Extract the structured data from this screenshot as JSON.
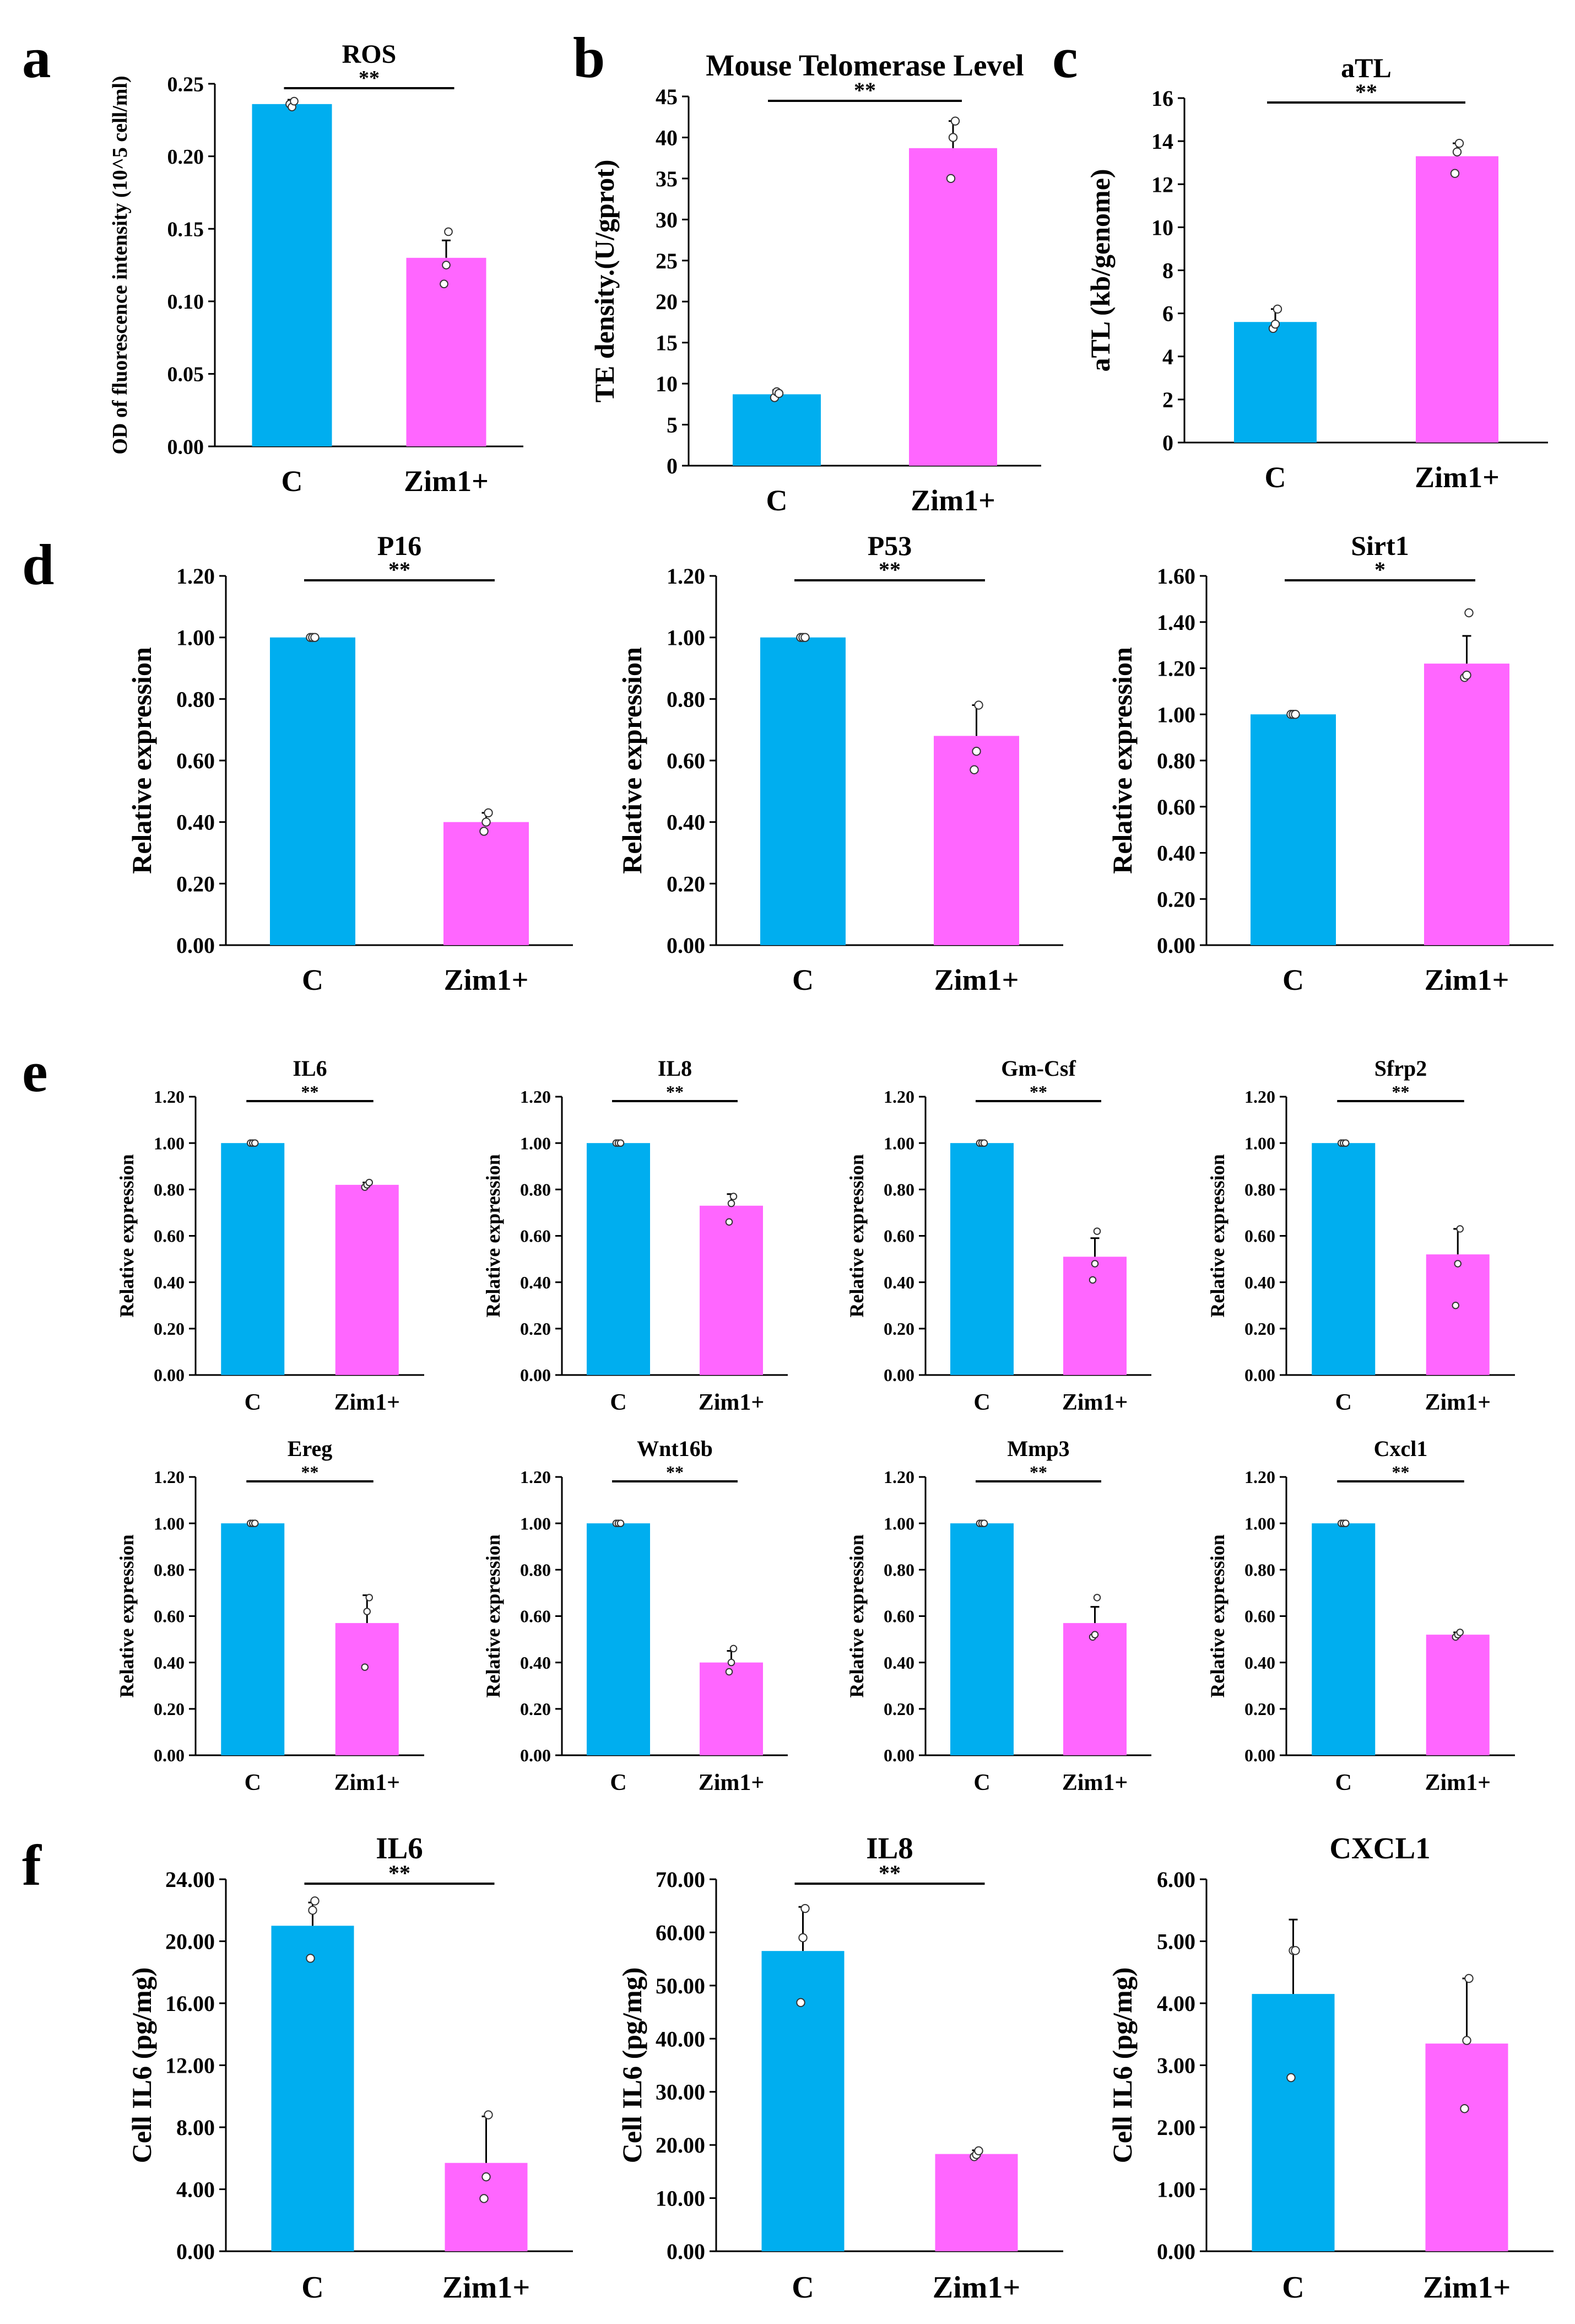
{
  "colors": {
    "control": "#00AEEF",
    "treated": "#FF66FF"
  },
  "panel_letters": [
    "a",
    "b",
    "c",
    "d",
    "e",
    "f"
  ],
  "chart_data": [
    {
      "id": "a-ros",
      "panel": "a",
      "type": "bar",
      "title": "ROS",
      "ylabel": "OD of fluorescence intensity (10^5 cell/ml)",
      "xlabel": "",
      "categories": [
        "C",
        "Zim1+"
      ],
      "values": [
        0.236,
        0.13
      ],
      "errors": [
        0.003,
        0.012
      ],
      "points": [
        [
          0.236,
          0.234,
          0.238
        ],
        [
          0.112,
          0.125,
          0.148
        ]
      ],
      "ylim": [
        0,
        0.25
      ],
      "yticks": [
        0,
        0.05,
        0.1,
        0.15,
        0.2,
        0.25
      ],
      "ytick_labels": [
        "0.00",
        "0.05",
        "0.10",
        "0.15",
        "0.20",
        "0.25"
      ],
      "significance": "**",
      "grid": false
    },
    {
      "id": "b-telomerase",
      "panel": "b",
      "type": "bar",
      "title": "Mouse Telomerase Level",
      "ylabel": "TE density.(U/gprot)",
      "xlabel": "",
      "categories": [
        "C",
        "Zim1+"
      ],
      "values": [
        8.7,
        38.7
      ],
      "errors": [
        0.5,
        3.3
      ],
      "points": [
        [
          8.3,
          9.0,
          8.8
        ],
        [
          35.0,
          40.0,
          42.0
        ]
      ],
      "ylim": [
        0,
        45
      ],
      "yticks": [
        0,
        5,
        10,
        15,
        20,
        25,
        30,
        35,
        40,
        45
      ],
      "ytick_labels": [
        "0",
        "5",
        "10",
        "15",
        "20",
        "25",
        "30",
        "35",
        "40",
        "45"
      ],
      "significance": "**",
      "grid": false
    },
    {
      "id": "c-atl",
      "panel": "c",
      "type": "bar",
      "title": "aTL",
      "ylabel": "aTL (kb/genome)",
      "xlabel": "",
      "categories": [
        "C",
        "Zim1+"
      ],
      "values": [
        5.6,
        13.3
      ],
      "errors": [
        0.6,
        0.6
      ],
      "points": [
        [
          5.3,
          5.5,
          6.2
        ],
        [
          12.5,
          13.5,
          13.9
        ]
      ],
      "ylim": [
        0,
        16
      ],
      "yticks": [
        0,
        2,
        4,
        6,
        8,
        10,
        12,
        14,
        16
      ],
      "ytick_labels": [
        "0",
        "2",
        "4",
        "6",
        "8",
        "10",
        "12",
        "14",
        "16"
      ],
      "significance": "**",
      "grid": false
    },
    {
      "id": "d-p16",
      "panel": "d",
      "type": "bar",
      "title": "P16",
      "ylabel": "Relative expression",
      "xlabel": "",
      "categories": [
        "C",
        "Zim1+"
      ],
      "values": [
        1.0,
        0.4
      ],
      "errors": [
        0.0,
        0.03
      ],
      "points": [
        [
          1.0,
          1.0,
          1.0
        ],
        [
          0.37,
          0.4,
          0.43
        ]
      ],
      "ylim": [
        0,
        1.2
      ],
      "yticks": [
        0,
        0.2,
        0.4,
        0.6,
        0.8,
        1.0,
        1.2
      ],
      "ytick_labels": [
        "0.00",
        "0.20",
        "0.40",
        "0.60",
        "0.80",
        "1.00",
        "1.20"
      ],
      "significance": "**",
      "grid": false
    },
    {
      "id": "d-p53",
      "panel": "d",
      "type": "bar",
      "title": "P53",
      "ylabel": "Relative expression",
      "xlabel": "",
      "categories": [
        "C",
        "Zim1+"
      ],
      "values": [
        1.0,
        0.68
      ],
      "errors": [
        0.0,
        0.1
      ],
      "points": [
        [
          1.0,
          1.0,
          1.0
        ],
        [
          0.57,
          0.63,
          0.78
        ]
      ],
      "ylim": [
        0,
        1.2
      ],
      "yticks": [
        0,
        0.2,
        0.4,
        0.6,
        0.8,
        1.0,
        1.2
      ],
      "ytick_labels": [
        "0.00",
        "0.20",
        "0.40",
        "0.60",
        "0.80",
        "1.00",
        "1.20"
      ],
      "significance": "**",
      "grid": false
    },
    {
      "id": "d-sirt1",
      "panel": "d",
      "type": "bar",
      "title": "Sirt1",
      "ylabel": "Relative expression",
      "xlabel": "",
      "categories": [
        "C",
        "Zim1+"
      ],
      "values": [
        1.0,
        1.22
      ],
      "errors": [
        0.0,
        0.12
      ],
      "points": [
        [
          1.0,
          1.0,
          1.0
        ],
        [
          1.16,
          1.17,
          1.44
        ]
      ],
      "ylim": [
        0,
        1.6
      ],
      "yticks": [
        0,
        0.2,
        0.4,
        0.6,
        0.8,
        1.0,
        1.2,
        1.4,
        1.6
      ],
      "ytick_labels": [
        "0.00",
        "0.20",
        "0.40",
        "0.60",
        "0.80",
        "1.00",
        "1.20",
        "1.40",
        "1.60"
      ],
      "significance": "*",
      "grid": false
    },
    {
      "id": "e-il6",
      "panel": "e",
      "type": "bar",
      "title": "IL6",
      "ylabel": "Relative expression",
      "xlabel": "",
      "categories": [
        "C",
        "Zim1+"
      ],
      "values": [
        1.0,
        0.82
      ],
      "errors": [
        0.0,
        0.01
      ],
      "points": [
        [
          1.0,
          1.0,
          1.0
        ],
        [
          0.81,
          0.82,
          0.83
        ]
      ],
      "ylim": [
        0,
        1.2
      ],
      "yticks": [
        0,
        0.2,
        0.4,
        0.6,
        0.8,
        1.0,
        1.2
      ],
      "ytick_labels": [
        "0.00",
        "0.20",
        "0.40",
        "0.60",
        "0.80",
        "1.00",
        "1.20"
      ],
      "significance": "**",
      "grid": false
    },
    {
      "id": "e-il8",
      "panel": "e",
      "type": "bar",
      "title": "IL8",
      "ylabel": "Relative expression",
      "xlabel": "",
      "categories": [
        "C",
        "Zim1+"
      ],
      "values": [
        1.0,
        0.73
      ],
      "errors": [
        0.0,
        0.05
      ],
      "points": [
        [
          1.0,
          1.0,
          1.0
        ],
        [
          0.66,
          0.74,
          0.77
        ]
      ],
      "ylim": [
        0,
        1.2
      ],
      "yticks": [
        0,
        0.2,
        0.4,
        0.6,
        0.8,
        1.0,
        1.2
      ],
      "ytick_labels": [
        "0.00",
        "0.20",
        "0.40",
        "0.60",
        "0.80",
        "1.00",
        "1.20"
      ],
      "significance": "**",
      "grid": false
    },
    {
      "id": "e-gmcsf",
      "panel": "e",
      "type": "bar",
      "title": "Gm-Csf",
      "ylabel": "Relative expression",
      "xlabel": "",
      "categories": [
        "C",
        "Zim1+"
      ],
      "values": [
        1.0,
        0.51
      ],
      "errors": [
        0.0,
        0.08
      ],
      "points": [
        [
          1.0,
          1.0,
          1.0
        ],
        [
          0.41,
          0.48,
          0.62
        ]
      ],
      "ylim": [
        0,
        1.2
      ],
      "yticks": [
        0,
        0.2,
        0.4,
        0.6,
        0.8,
        1.0,
        1.2
      ],
      "ytick_labels": [
        "0.00",
        "0.20",
        "0.40",
        "0.60",
        "0.80",
        "1.00",
        "1.20"
      ],
      "significance": "**",
      "grid": false
    },
    {
      "id": "e-sfrp2",
      "panel": "e",
      "type": "bar",
      "title": "Sfrp2",
      "ylabel": "Relative expression",
      "xlabel": "",
      "categories": [
        "C",
        "Zim1+"
      ],
      "values": [
        1.0,
        0.52
      ],
      "errors": [
        0.0,
        0.11
      ],
      "points": [
        [
          1.0,
          1.0,
          1.0
        ],
        [
          0.3,
          0.48,
          0.63
        ]
      ],
      "ylim": [
        0,
        1.2
      ],
      "yticks": [
        0,
        0.2,
        0.4,
        0.6,
        0.8,
        1.0,
        1.2
      ],
      "ytick_labels": [
        "0.00",
        "0.20",
        "0.40",
        "0.60",
        "0.80",
        "1.00",
        "1.20"
      ],
      "significance": "**",
      "grid": false
    },
    {
      "id": "e-ereg",
      "panel": "e",
      "type": "bar",
      "title": "Ereg",
      "ylabel": "Relative expression",
      "xlabel": "",
      "categories": [
        "C",
        "Zim1+"
      ],
      "values": [
        1.0,
        0.57
      ],
      "errors": [
        0.0,
        0.12
      ],
      "points": [
        [
          1.0,
          1.0,
          1.0
        ],
        [
          0.38,
          0.62,
          0.68
        ]
      ],
      "ylim": [
        0,
        1.2
      ],
      "yticks": [
        0,
        0.2,
        0.4,
        0.6,
        0.8,
        1.0,
        1.2
      ],
      "ytick_labels": [
        "0.00",
        "0.20",
        "0.40",
        "0.60",
        "0.80",
        "1.00",
        "1.20"
      ],
      "significance": "**",
      "grid": false
    },
    {
      "id": "e-wnt16b",
      "panel": "e",
      "type": "bar",
      "title": "Wnt16b",
      "ylabel": "Relative expression",
      "xlabel": "",
      "categories": [
        "C",
        "Zim1+"
      ],
      "values": [
        1.0,
        0.4
      ],
      "errors": [
        0.0,
        0.05
      ],
      "points": [
        [
          1.0,
          1.0,
          1.0
        ],
        [
          0.36,
          0.4,
          0.46
        ]
      ],
      "ylim": [
        0,
        1.2
      ],
      "yticks": [
        0,
        0.2,
        0.4,
        0.6,
        0.8,
        1.0,
        1.2
      ],
      "ytick_labels": [
        "0.00",
        "0.20",
        "0.40",
        "0.60",
        "0.80",
        "1.00",
        "1.20"
      ],
      "significance": "**",
      "grid": false
    },
    {
      "id": "e-mmp3",
      "panel": "e",
      "type": "bar",
      "title": "Mmp3",
      "ylabel": "Relative expression",
      "xlabel": "",
      "categories": [
        "C",
        "Zim1+"
      ],
      "values": [
        1.0,
        0.57
      ],
      "errors": [
        0.0,
        0.07
      ],
      "points": [
        [
          1.0,
          1.0,
          1.0
        ],
        [
          0.51,
          0.52,
          0.68
        ]
      ],
      "ylim": [
        0,
        1.2
      ],
      "yticks": [
        0,
        0.2,
        0.4,
        0.6,
        0.8,
        1.0,
        1.2
      ],
      "ytick_labels": [
        "0.00",
        "0.20",
        "0.40",
        "0.60",
        "0.80",
        "1.00",
        "1.20"
      ],
      "significance": "**",
      "grid": false
    },
    {
      "id": "e-cxcl1",
      "panel": "e",
      "type": "bar",
      "title": "Cxcl1",
      "ylabel": "Relative expression",
      "xlabel": "",
      "categories": [
        "C",
        "Zim1+"
      ],
      "values": [
        1.0,
        0.52
      ],
      "errors": [
        0.0,
        0.01
      ],
      "points": [
        [
          1.0,
          1.0,
          1.0
        ],
        [
          0.51,
          0.52,
          0.53
        ]
      ],
      "ylim": [
        0,
        1.2
      ],
      "yticks": [
        0,
        0.2,
        0.4,
        0.6,
        0.8,
        1.0,
        1.2
      ],
      "ytick_labels": [
        "0.00",
        "0.20",
        "0.40",
        "0.60",
        "0.80",
        "1.00",
        "1.20"
      ],
      "significance": "**",
      "grid": false
    },
    {
      "id": "f-il6",
      "panel": "f",
      "type": "bar",
      "title": "IL6",
      "ylabel": "Cell IL6 (pg/mg)",
      "xlabel": "",
      "categories": [
        "C",
        "Zim1+"
      ],
      "values": [
        21.0,
        5.7
      ],
      "errors": [
        1.5,
        3.0
      ],
      "points": [
        [
          18.9,
          22.0,
          22.6
        ],
        [
          3.4,
          4.8,
          8.8
        ]
      ],
      "ylim": [
        0,
        24
      ],
      "yticks": [
        0,
        4,
        8,
        12,
        16,
        20,
        24
      ],
      "ytick_labels": [
        "0.00",
        "4.00",
        "8.00",
        "12.00",
        "16.00",
        "20.00",
        "24.00"
      ],
      "significance": "**",
      "grid": false
    },
    {
      "id": "f-il8",
      "panel": "f",
      "type": "bar",
      "title": "IL8",
      "ylabel": "Cell IL6 (pg/mg)",
      "xlabel": "",
      "categories": [
        "C",
        "Zim1+"
      ],
      "values": [
        56.5,
        18.3
      ],
      "errors": [
        8.3,
        0.7
      ],
      "points": [
        [
          46.8,
          59.0,
          64.5
        ],
        [
          17.8,
          18.2,
          18.9
        ]
      ],
      "ylim": [
        0,
        70
      ],
      "yticks": [
        0,
        10,
        20,
        30,
        40,
        50,
        60,
        70
      ],
      "ytick_labels": [
        "0.00",
        "10.00",
        "20.00",
        "30.00",
        "40.00",
        "50.00",
        "60.00",
        "70.00"
      ],
      "significance": "**",
      "grid": false
    },
    {
      "id": "f-cxcl1",
      "panel": "f",
      "type": "bar",
      "title": "CXCL1",
      "ylabel": "Cell IL6 (pg/mg)",
      "xlabel": "",
      "categories": [
        "C",
        "Zim1+"
      ],
      "values": [
        4.15,
        3.35
      ],
      "errors": [
        1.2,
        1.05
      ],
      "points": [
        [
          2.8,
          4.85,
          4.85
        ],
        [
          2.3,
          3.4,
          4.4
        ]
      ],
      "ylim": [
        0,
        6
      ],
      "yticks": [
        0,
        1,
        2,
        3,
        4,
        5,
        6
      ],
      "ytick_labels": [
        "0.00",
        "1.00",
        "2.00",
        "3.00",
        "4.00",
        "5.00",
        "6.00"
      ],
      "significance": "",
      "grid": false
    }
  ]
}
